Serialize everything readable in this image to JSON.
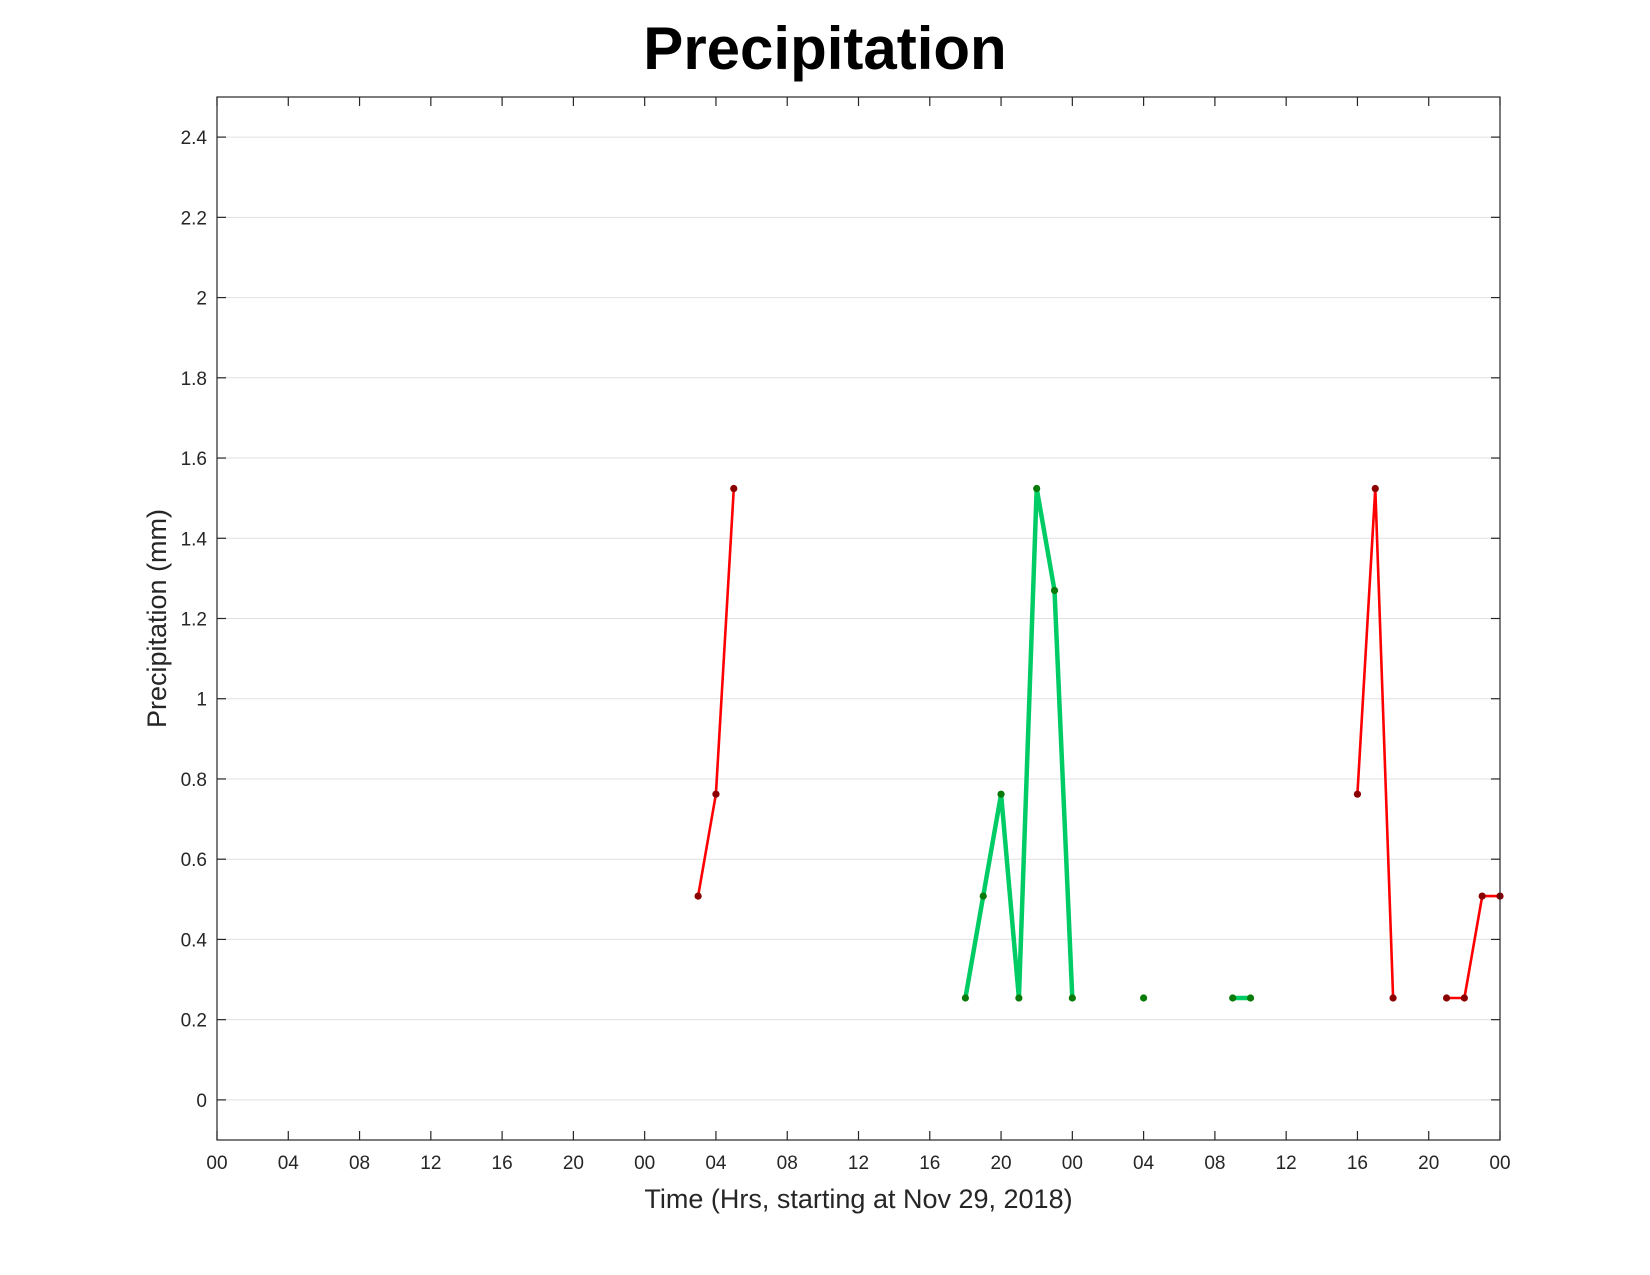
{
  "chart_data": {
    "type": "line",
    "title": "Precipitation",
    "xlabel": "Time (Hrs, starting at Nov 29, 2018)",
    "ylabel": "Precipitation (mm)",
    "x_unit": "hours",
    "xlim": [
      0,
      72
    ],
    "ylim": [
      -0.1,
      2.5
    ],
    "x_tick_values": [
      0,
      4,
      8,
      12,
      16,
      20,
      24,
      28,
      32,
      36,
      40,
      44,
      48,
      52,
      56,
      60,
      64,
      68,
      72
    ],
    "x_tick_labels": [
      "00",
      "04",
      "08",
      "12",
      "16",
      "20",
      "00",
      "04",
      "08",
      "12",
      "16",
      "20",
      "00",
      "04",
      "08",
      "12",
      "16",
      "20",
      "00"
    ],
    "y_ticks": [
      0,
      0.2,
      0.4,
      0.6,
      0.8,
      1,
      1.2,
      1.4,
      1.6,
      1.8,
      2,
      2.2,
      2.4
    ],
    "y_tick_labels": [
      "0",
      "0.2",
      "0.4",
      "0.6",
      "0.8",
      "1",
      "1.2",
      "1.4",
      "1.6",
      "1.8",
      "2",
      "2.2",
      "2.4"
    ],
    "grid": "horizontal",
    "marker_colors": {
      "red": "#8b0000",
      "green": "#0a7a0a"
    },
    "series": [
      {
        "color": "#ff0000",
        "line_style": "thin",
        "marker": "#8b0000",
        "segments": [
          [
            [
              27,
              0.508
            ],
            [
              28,
              0.762
            ],
            [
              29,
              1.524
            ]
          ]
        ]
      },
      {
        "color": "#00cc66",
        "line_style": "thick",
        "marker": "#0a7a0a",
        "segments": [
          [
            [
              42,
              0.254
            ],
            [
              43,
              0.508
            ],
            [
              44,
              0.762
            ],
            [
              45,
              0.254
            ],
            [
              46,
              1.524
            ],
            [
              47,
              1.27
            ],
            [
              48,
              0.254
            ]
          ],
          [
            [
              52,
              0.254
            ]
          ],
          [
            [
              57,
              0.254
            ],
            [
              58,
              0.254
            ]
          ]
        ]
      },
      {
        "color": "#ff0000",
        "line_style": "thin",
        "marker": "#8b0000",
        "segments": [
          [
            [
              64,
              0.762
            ],
            [
              65,
              1.524
            ],
            [
              66,
              0.254
            ]
          ],
          [
            [
              69,
              0.254
            ],
            [
              70,
              0.254
            ],
            [
              71,
              0.508
            ],
            [
              72,
              0.508
            ]
          ]
        ]
      }
    ]
  }
}
